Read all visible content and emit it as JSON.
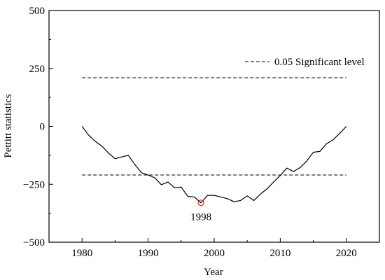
{
  "chart_data": {
    "type": "line",
    "xlabel": "Year",
    "ylabel": "Pettitt statistics",
    "xlim": [
      1975,
      2025
    ],
    "ylim": [
      -500,
      500
    ],
    "x_ticks": [
      1980,
      1990,
      2000,
      2010,
      2020
    ],
    "y_ticks": [
      -500,
      -250,
      0,
      250,
      500
    ],
    "x_tick_labels": [
      "1980",
      "1990",
      "2000",
      "2010",
      "2020"
    ],
    "y_tick_labels": [
      "−500",
      "−250",
      "0",
      "250",
      "500"
    ],
    "series": [
      {
        "x": [
          1980,
          1981,
          1982,
          1983,
          1984,
          1985,
          1986,
          1987,
          1988,
          1989,
          1990,
          1991,
          1992,
          1993,
          1994,
          1995,
          1996,
          1997,
          1998,
          1999,
          2000,
          2001,
          2002,
          2003,
          2004,
          2005,
          2006,
          2007,
          2008,
          2009,
          2010,
          2011,
          2012,
          2013,
          2014,
          2015,
          2016,
          2017,
          2018,
          2019,
          2020
        ],
        "y": [
          0,
          -38,
          -65,
          -85,
          -115,
          -140,
          -132,
          -125,
          -165,
          -200,
          -210,
          -222,
          -252,
          -240,
          -265,
          -262,
          -302,
          -305,
          -330,
          -298,
          -298,
          -305,
          -312,
          -325,
          -320,
          -300,
          -320,
          -292,
          -270,
          -240,
          -212,
          -180,
          -195,
          -178,
          -150,
          -112,
          -108,
          -75,
          -58,
          -30,
          0
        ],
        "color": "#000000"
      }
    ],
    "reference_lines": [
      {
        "name": "0.05 Significant level",
        "y": 210,
        "x_range": [
          1980,
          2020
        ],
        "style": "dashed"
      },
      {
        "y": -210,
        "x_range": [
          1980,
          2020
        ],
        "style": "dashed"
      }
    ],
    "annotations": [
      {
        "text": "1998",
        "x": 1998,
        "y": -330,
        "marker": "circle",
        "marker_color": "#d62728"
      }
    ],
    "legend": {
      "position": "top-right",
      "entries": [
        "0.05 Significant level"
      ]
    },
    "grid": false
  }
}
